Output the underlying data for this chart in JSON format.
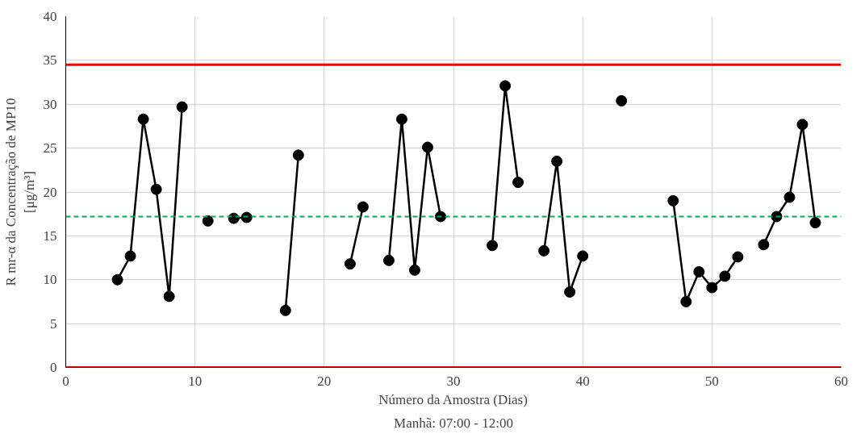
{
  "chart_data": {
    "type": "line",
    "xlabel": "Número da Amostra (Dias)",
    "ylabel": "R mr-α da Concentração de MP10\n[μg/m³]",
    "annotations": [
      "Manhã: 07:00 - 12:00"
    ],
    "x": [
      4,
      5,
      6,
      7,
      8,
      9,
      10,
      11,
      12,
      13,
      14,
      15,
      16,
      17,
      18,
      19,
      20,
      21,
      22,
      23,
      24,
      25,
      26,
      27,
      28,
      29,
      30,
      31,
      32,
      33,
      34,
      35,
      36,
      37,
      38,
      39,
      40,
      41,
      42,
      43,
      44,
      45,
      46,
      47,
      48,
      49,
      50,
      51,
      52,
      53,
      54,
      55,
      56,
      57,
      58
    ],
    "series": [
      {
        "color": "#000000",
        "values": [
          10.0,
          12.7,
          28.3,
          20.3,
          8.1,
          29.7,
          null,
          16.7,
          null,
          17.0,
          17.1,
          null,
          null,
          6.5,
          24.2,
          null,
          null,
          null,
          11.8,
          18.3,
          null,
          12.2,
          28.3,
          11.1,
          25.1,
          17.2,
          null,
          null,
          null,
          13.9,
          32.1,
          21.1,
          null,
          13.3,
          23.5,
          8.6,
          12.7,
          null,
          null,
          30.4,
          null,
          null,
          null,
          19.0,
          7.5,
          10.9,
          9.1,
          10.4,
          12.6,
          null,
          14.0,
          17.2,
          19.4,
          27.7,
          16.5
        ]
      }
    ],
    "marker": "circle",
    "line_style": "solid",
    "ref_lines": [
      {
        "axis": "y",
        "value": 34.5,
        "label": null,
        "color": "#ff0000",
        "line_style": "solid"
      },
      {
        "axis": "y",
        "value": 17.2,
        "label": null,
        "color": "#00b050",
        "line_style": "dashed"
      },
      {
        "axis": "y",
        "value": 0,
        "label": null,
        "color": "#ff0000",
        "line_style": "solid"
      }
    ],
    "xlim": [
      0,
      60
    ],
    "xticks": [
      0,
      10,
      20,
      30,
      40,
      50,
      60
    ],
    "ylim": [
      0,
      40
    ],
    "yticks": [
      0,
      5,
      10,
      15,
      20,
      25,
      30,
      35,
      40
    ],
    "grid": true
  }
}
